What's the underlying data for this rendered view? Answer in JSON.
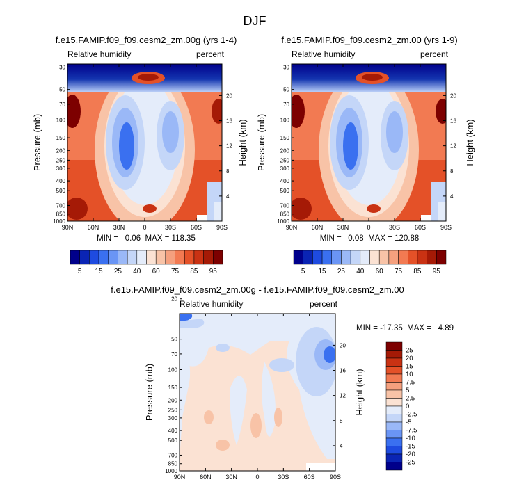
{
  "figure": {
    "title": "DJF"
  },
  "panels": [
    {
      "title": "f.e15.FAMIP.f09_f09.cesm2_zm.00g (yrs 1-4)",
      "left_label": "Relative humidity",
      "right_label": "percent",
      "stats": "MIN =   0.06  MAX = 118.35"
    },
    {
      "title": "f.e15.FAMIP.f09_f09.cesm2_zm.00 (yrs 1-9)",
      "left_label": "Relative humidity",
      "right_label": "percent",
      "stats": "MIN =   0.08  MAX = 120.88"
    },
    {
      "title": "f.e15.FAMIP.f09_f09.cesm2_zm.00g - f.e15.FAMIP.f09_f09.cesm2_zm.00",
      "left_label": "Relative humidity",
      "right_label": "percent",
      "stats": "MIN = -17.35  MAX =   4.89"
    }
  ],
  "chart_data": [
    {
      "type": "contour",
      "title": "f.e15.FAMIP.f09_f09.cesm2_zm.00g (yrs 1-4)",
      "xlabel": "",
      "ylabel": "Pressure (mb)",
      "y2label": "Height (km)",
      "x_ticks": [
        "90N",
        "60N",
        "30N",
        "0",
        "30S",
        "60S",
        "90S"
      ],
      "y_ticks": [
        "30",
        "50",
        "70",
        "100",
        "150",
        "200",
        "250",
        "300",
        "400",
        "500",
        "700",
        "850",
        "1000"
      ],
      "y2_ticks": [
        "20",
        "16",
        "12",
        "8",
        "4"
      ],
      "min": 0.06,
      "max": 118.35,
      "colorbar": [
        "5",
        "15",
        "25",
        "40",
        "60",
        "75",
        "85",
        "95"
      ]
    },
    {
      "type": "contour",
      "title": "f.e15.FAMIP.f09_f09.cesm2_zm.00 (yrs 1-9)",
      "xlabel": "",
      "ylabel": "Pressure (mb)",
      "y2label": "Height (km)",
      "x_ticks": [
        "90N",
        "60N",
        "30N",
        "0",
        "30S",
        "60S",
        "90S"
      ],
      "y_ticks": [
        "30",
        "50",
        "70",
        "100",
        "150",
        "200",
        "250",
        "300",
        "400",
        "500",
        "700",
        "850",
        "1000"
      ],
      "y2_ticks": [
        "20",
        "16",
        "12",
        "8",
        "4"
      ],
      "min": 0.08,
      "max": 120.88,
      "colorbar": [
        "5",
        "15",
        "25",
        "40",
        "60",
        "75",
        "85",
        "95"
      ]
    },
    {
      "type": "contour",
      "title": "f.e15.FAMIP.f09_f09.cesm2_zm.00g - f.e15.FAMIP.f09_f09.cesm2_zm.00",
      "xlabel": "",
      "ylabel": "Pressure (mb)",
      "y2label": "Height (km)",
      "x_ticks": [
        "90N",
        "60N",
        "30N",
        "0",
        "30S",
        "60S",
        "90S"
      ],
      "y_ticks": [
        "20",
        "50",
        "70",
        "100",
        "150",
        "200",
        "250",
        "300",
        "400",
        "500",
        "700",
        "850",
        "1000"
      ],
      "y2_ticks": [
        "20",
        "16",
        "12",
        "8",
        "4"
      ],
      "min": -17.35,
      "max": 4.89,
      "colorbar": [
        "25",
        "20",
        "15",
        "10",
        "7.5",
        "5",
        "2.5",
        "0",
        "-2.5",
        "-5",
        "-7.5",
        "-10",
        "-15",
        "-20",
        "-25"
      ]
    }
  ],
  "palette": [
    "#00008b",
    "#0a24b4",
    "#1e4be0",
    "#3a70f0",
    "#6a95f5",
    "#9ab8f7",
    "#c4d6f8",
    "#e4ecfa",
    "#fbe2d3",
    "#f8c3a7",
    "#f5a07e",
    "#f27a52",
    "#e45128",
    "#c93213",
    "#a51a06",
    "#7d0000"
  ],
  "colors": {
    "red": "#c8321a",
    "blue": "#1f4ad8"
  }
}
